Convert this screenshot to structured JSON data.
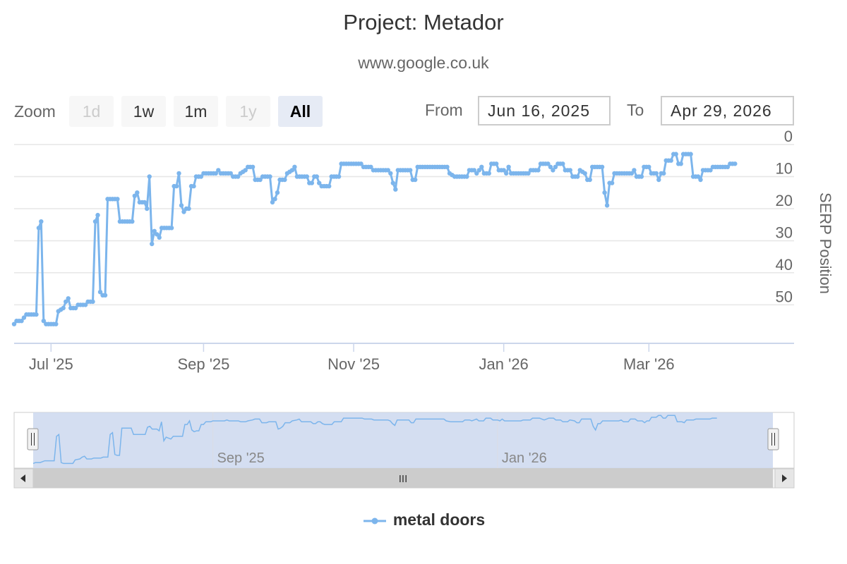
{
  "header": {
    "title": "Project: Metador",
    "subtitle": "www.google.co.uk"
  },
  "zoom": {
    "label": "Zoom",
    "buttons": [
      {
        "label": "1d",
        "state": "disabled"
      },
      {
        "label": "1w",
        "state": "normal"
      },
      {
        "label": "1m",
        "state": "normal"
      },
      {
        "label": "1y",
        "state": "disabled"
      },
      {
        "label": "All",
        "state": "active"
      }
    ]
  },
  "range": {
    "from_label": "From",
    "from_value": "Jun 16, 2025",
    "to_label": "To",
    "to_value": "Apr 29, 2026"
  },
  "navigator": {
    "tick_labels": [
      "Sep '25",
      "Jan '26"
    ],
    "scroll_grip": "III"
  },
  "colors": {
    "series": "#7cb5ec",
    "navigator_mask": "#cdd8ef",
    "grid": "#e6e6e6"
  },
  "chart_data": {
    "type": "line",
    "title": "Project: Metador",
    "subtitle": "www.google.co.uk",
    "xlabel": "",
    "ylabel": "SERP Position",
    "y_reversed": true,
    "ylim": [
      0,
      62
    ],
    "xlim": [
      "2025-06-16",
      "2026-04-29"
    ],
    "x_ticks": [
      "Jul '25",
      "Sep '25",
      "Nov '25",
      "Jan '26",
      "Mar '26"
    ],
    "y_ticks": [
      0,
      10,
      20,
      30,
      40,
      50
    ],
    "legend_position": "bottom-center",
    "series": [
      {
        "name": "metal doors",
        "points": [
          [
            "2025-06-16",
            56
          ],
          [
            "2025-06-17",
            55
          ],
          [
            "2025-06-19",
            55
          ],
          [
            "2025-06-21",
            53
          ],
          [
            "2025-06-25",
            53
          ],
          [
            "2025-06-26",
            26
          ],
          [
            "2025-06-27",
            24
          ],
          [
            "2025-06-28",
            55
          ],
          [
            "2025-06-29",
            56
          ],
          [
            "2025-07-03",
            56
          ],
          [
            "2025-07-04",
            52
          ],
          [
            "2025-07-06",
            51
          ],
          [
            "2025-07-07",
            49
          ],
          [
            "2025-07-08",
            48
          ],
          [
            "2025-07-09",
            51
          ],
          [
            "2025-07-11",
            51
          ],
          [
            "2025-07-12",
            50
          ],
          [
            "2025-07-15",
            50
          ],
          [
            "2025-07-16",
            49
          ],
          [
            "2025-07-18",
            49
          ],
          [
            "2025-07-19",
            24
          ],
          [
            "2025-07-20",
            22
          ],
          [
            "2025-07-21",
            46
          ],
          [
            "2025-07-22",
            47
          ],
          [
            "2025-07-23",
            47
          ],
          [
            "2025-07-24",
            17
          ],
          [
            "2025-07-28",
            17
          ],
          [
            "2025-07-29",
            24
          ],
          [
            "2025-08-03",
            24
          ],
          [
            "2025-08-04",
            16
          ],
          [
            "2025-08-05",
            15
          ],
          [
            "2025-08-06",
            18
          ],
          [
            "2025-08-08",
            18
          ],
          [
            "2025-08-09",
            20
          ],
          [
            "2025-08-10",
            10
          ],
          [
            "2025-08-11",
            31
          ],
          [
            "2025-08-12",
            27
          ],
          [
            "2025-08-13",
            28
          ],
          [
            "2025-08-14",
            29
          ],
          [
            "2025-08-15",
            26
          ],
          [
            "2025-08-19",
            26
          ],
          [
            "2025-08-20",
            13
          ],
          [
            "2025-08-21",
            13
          ],
          [
            "2025-08-22",
            9
          ],
          [
            "2025-08-23",
            19
          ],
          [
            "2025-08-24",
            21
          ],
          [
            "2025-08-25",
            20
          ],
          [
            "2025-08-26",
            20
          ],
          [
            "2025-08-27",
            13
          ],
          [
            "2025-08-28",
            13
          ],
          [
            "2025-08-29",
            10
          ],
          [
            "2025-08-31",
            10
          ],
          [
            "2025-09-01",
            9
          ],
          [
            "2025-09-06",
            9
          ],
          [
            "2025-09-07",
            8
          ],
          [
            "2025-09-08",
            9
          ],
          [
            "2025-09-12",
            9
          ],
          [
            "2025-09-13",
            10
          ],
          [
            "2025-09-15",
            10
          ],
          [
            "2025-09-16",
            9
          ],
          [
            "2025-09-18",
            8
          ],
          [
            "2025-09-19",
            7
          ],
          [
            "2025-09-21",
            7
          ],
          [
            "2025-09-22",
            11
          ],
          [
            "2025-09-24",
            11
          ],
          [
            "2025-09-25",
            10
          ],
          [
            "2025-09-28",
            10
          ],
          [
            "2025-09-29",
            18
          ],
          [
            "2025-09-30",
            17
          ],
          [
            "2025-10-01",
            15
          ],
          [
            "2025-10-02",
            11
          ],
          [
            "2025-10-04",
            11
          ],
          [
            "2025-10-05",
            9
          ],
          [
            "2025-10-07",
            8
          ],
          [
            "2025-10-08",
            7
          ],
          [
            "2025-10-09",
            10
          ],
          [
            "2025-10-13",
            10
          ],
          [
            "2025-10-14",
            12
          ],
          [
            "2025-10-15",
            12
          ],
          [
            "2025-10-16",
            10
          ],
          [
            "2025-10-17",
            10
          ],
          [
            "2025-10-18",
            12
          ],
          [
            "2025-10-19",
            13
          ],
          [
            "2025-10-22",
            13
          ],
          [
            "2025-10-23",
            10
          ],
          [
            "2025-10-26",
            10
          ],
          [
            "2025-10-27",
            6
          ],
          [
            "2025-10-31",
            6
          ],
          [
            "2025-11-01",
            6
          ],
          [
            "2025-11-04",
            6
          ],
          [
            "2025-11-05",
            7
          ],
          [
            "2025-11-08",
            7
          ],
          [
            "2025-11-09",
            8
          ],
          [
            "2025-11-15",
            8
          ],
          [
            "2025-11-16",
            9
          ],
          [
            "2025-11-17",
            12
          ],
          [
            "2025-11-18",
            14
          ],
          [
            "2025-11-19",
            8
          ],
          [
            "2025-11-24",
            8
          ],
          [
            "2025-11-25",
            11
          ],
          [
            "2025-11-26",
            11
          ],
          [
            "2025-11-27",
            7
          ],
          [
            "2025-12-05",
            7
          ],
          [
            "2025-12-06",
            7
          ],
          [
            "2025-12-09",
            7
          ],
          [
            "2025-12-10",
            9
          ],
          [
            "2025-12-12",
            10
          ],
          [
            "2025-12-17",
            10
          ],
          [
            "2025-12-18",
            8
          ],
          [
            "2025-12-20",
            8
          ],
          [
            "2025-12-21",
            9
          ],
          [
            "2025-12-22",
            8
          ],
          [
            "2025-12-23",
            7
          ],
          [
            "2025-12-24",
            9
          ],
          [
            "2025-12-26",
            9
          ],
          [
            "2025-12-27",
            6
          ],
          [
            "2025-12-29",
            6
          ],
          [
            "2025-12-30",
            8
          ],
          [
            "2026-01-01",
            8
          ],
          [
            "2026-01-02",
            9
          ],
          [
            "2026-01-03",
            7
          ],
          [
            "2026-01-04",
            9
          ],
          [
            "2026-01-11",
            9
          ],
          [
            "2026-01-12",
            8
          ],
          [
            "2026-01-15",
            8
          ],
          [
            "2026-01-16",
            6
          ],
          [
            "2026-01-19",
            6
          ],
          [
            "2026-01-20",
            7
          ],
          [
            "2026-01-21",
            8
          ],
          [
            "2026-01-22",
            7
          ],
          [
            "2026-01-23",
            6
          ],
          [
            "2026-01-25",
            6
          ],
          [
            "2026-01-26",
            8
          ],
          [
            "2026-01-28",
            8
          ],
          [
            "2026-01-29",
            10
          ],
          [
            "2026-01-31",
            10
          ],
          [
            "2026-02-01",
            8
          ],
          [
            "2026-02-03",
            9
          ],
          [
            "2026-02-04",
            11
          ],
          [
            "2026-02-05",
            11
          ],
          [
            "2026-02-06",
            7
          ],
          [
            "2026-02-09",
            7
          ],
          [
            "2026-02-10",
            7
          ],
          [
            "2026-02-11",
            15
          ],
          [
            "2026-02-12",
            19
          ],
          [
            "2026-02-13",
            12
          ],
          [
            "2026-02-14",
            12
          ],
          [
            "2026-02-15",
            9
          ],
          [
            "2026-02-17",
            9
          ],
          [
            "2026-02-22",
            9
          ],
          [
            "2026-02-23",
            8
          ],
          [
            "2026-02-24",
            10
          ],
          [
            "2026-02-26",
            10
          ],
          [
            "2026-02-27",
            7
          ],
          [
            "2026-03-01",
            7
          ],
          [
            "2026-03-02",
            9
          ],
          [
            "2026-03-04",
            9
          ],
          [
            "2026-03-05",
            11
          ],
          [
            "2026-03-06",
            9
          ],
          [
            "2026-03-07",
            9
          ],
          [
            "2026-03-08",
            5
          ],
          [
            "2026-03-10",
            5
          ],
          [
            "2026-03-11",
            3
          ],
          [
            "2026-03-12",
            3
          ],
          [
            "2026-03-13",
            6
          ],
          [
            "2026-03-14",
            6
          ],
          [
            "2026-03-15",
            3
          ],
          [
            "2026-03-18",
            3
          ],
          [
            "2026-03-19",
            10
          ],
          [
            "2026-03-21",
            10
          ],
          [
            "2026-03-22",
            11
          ],
          [
            "2026-03-23",
            8
          ],
          [
            "2026-03-26",
            8
          ],
          [
            "2026-03-27",
            7
          ],
          [
            "2026-04-02",
            7
          ],
          [
            "2026-04-03",
            6
          ],
          [
            "2026-04-05",
            6
          ]
        ]
      }
    ]
  }
}
